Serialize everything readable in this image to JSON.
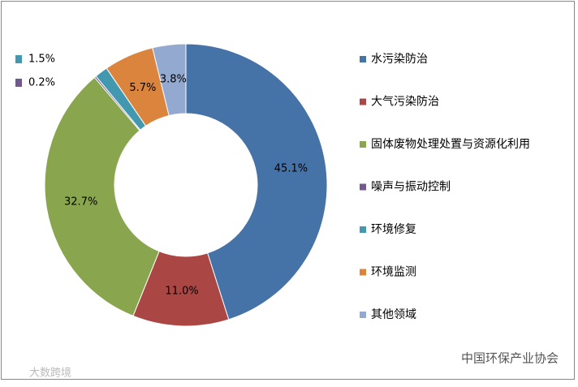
{
  "chart_data": {
    "type": "donut",
    "categories": [
      "水污染防治",
      "大气污染防治",
      "固体废物处理处置与资源化利用",
      "噪声与振动控制",
      "环境修复",
      "环境监测",
      "其他领域"
    ],
    "values": [
      45.1,
      11.0,
      32.7,
      0.2,
      1.5,
      5.7,
      3.8
    ],
    "value_labels": [
      "45.1%",
      "11.0%",
      "32.7%",
      "0.2%",
      "1.5%",
      "5.7%",
      "3.8%"
    ],
    "colors": [
      "#4572a7",
      "#aa4643",
      "#89a54e",
      "#71588f",
      "#4198af",
      "#db843d",
      "#93a9cf"
    ],
    "legend": "right",
    "watermarks": [
      "中国环保产业协会",
      "大数跨境"
    ]
  }
}
